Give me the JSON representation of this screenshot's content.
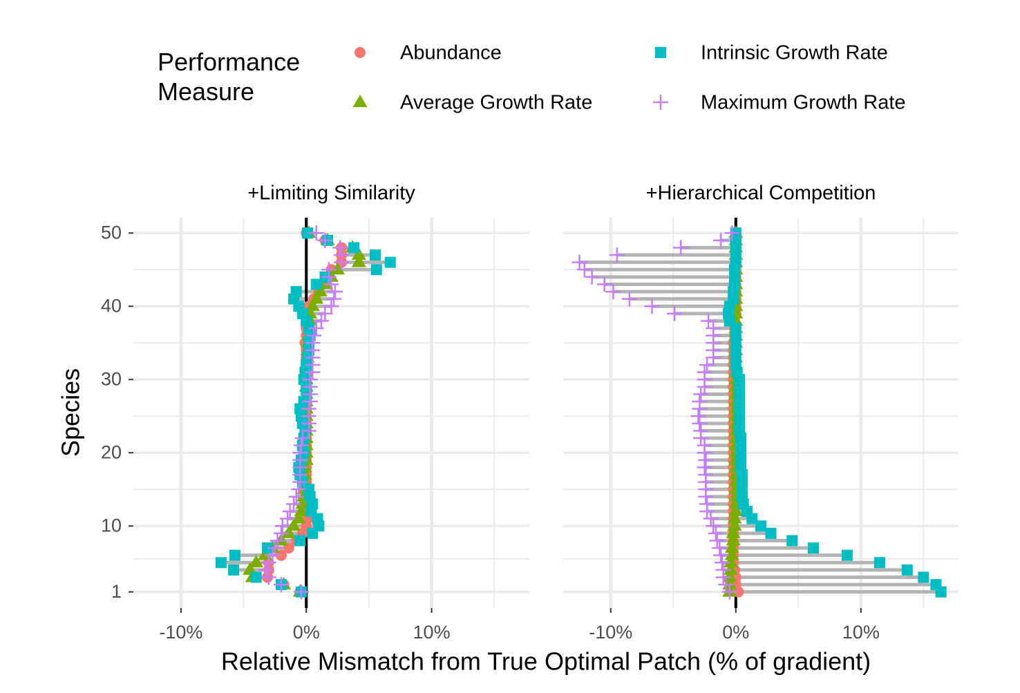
{
  "chart_data": {
    "type": "dot",
    "legend_title": "Performance\nMeasure",
    "xlabel": "Relative Mismatch from True Optimal Patch (% of gradient)",
    "ylabel": "Species",
    "xlim": [
      -13.8,
      17.8
    ],
    "ylim": [
      -1.2,
      52.1
    ],
    "xticks": [
      {
        "value": -10,
        "label": "-10%"
      },
      {
        "value": 0,
        "label": "0%"
      },
      {
        "value": 10,
        "label": "10%"
      }
    ],
    "minor_xticks": [
      -5,
      5,
      15
    ],
    "yticks": [
      1,
      10,
      20,
      30,
      40,
      50
    ],
    "minor_yticks": [
      5.5,
      15,
      25,
      35,
      45
    ],
    "grid": true,
    "categories": [
      1,
      2,
      3,
      4,
      5,
      6,
      7,
      8,
      9,
      10,
      11,
      12,
      13,
      14,
      15,
      16,
      17,
      18,
      19,
      20,
      21,
      22,
      23,
      24,
      25,
      26,
      27,
      28,
      29,
      30,
      31,
      32,
      33,
      34,
      35,
      36,
      37,
      38,
      39,
      40,
      41,
      42,
      43,
      44,
      45,
      46,
      47,
      48,
      49,
      50
    ],
    "series": [
      {
        "name": "Abundance",
        "color": "#F8766D",
        "shape": "circle"
      },
      {
        "name": "Average Growth Rate",
        "color": "#7CAE00",
        "shape": "triangle"
      },
      {
        "name": "Intrinsic Growth Rate",
        "color": "#00BFC4",
        "shape": "square"
      },
      {
        "name": "Maximum Growth Rate",
        "color": "#C77CFF",
        "shape": "plus"
      }
    ],
    "facets": [
      {
        "title": "+Limiting Similarity",
        "series": [
          {
            "values": [
              -0.5,
              -1.8,
              -3.1,
              -3,
              -3,
              -2,
              -1.4,
              -0.8,
              -0.3,
              0,
              0.1,
              0.1,
              0,
              0,
              0,
              0,
              0,
              0,
              0,
              0,
              0,
              0,
              0,
              0,
              0,
              0,
              0,
              0,
              0,
              0,
              0,
              0,
              0,
              0,
              -0.1,
              0,
              0,
              0,
              0,
              0.2,
              0.6,
              1,
              1.3,
              1.5,
              2,
              2.8,
              2.8,
              2.8,
              1.5,
              0
            ]
          },
          {
            "values": [
              -0.5,
              -1.8,
              -4.3,
              -4.5,
              -4,
              -3.3,
              -2.7,
              -2,
              -1.4,
              -1,
              -0.6,
              -0.4,
              -0.3,
              -0.2,
              -0.2,
              -0.1,
              -0.1,
              -0.1,
              0,
              0,
              0,
              0,
              0,
              0,
              0,
              0,
              0,
              0,
              0,
              0,
              0,
              0,
              0.1,
              0.1,
              0.1,
              0.2,
              0.3,
              0.3,
              0.3,
              0.5,
              0.8,
              1.1,
              1.6,
              2,
              2.5,
              4.2,
              4.2,
              3.7,
              1.7,
              0.2
            ]
          },
          {
            "values": [
              -0.4,
              -2,
              -4,
              -5.8,
              -6.8,
              -5.7,
              -3.1,
              -0.5,
              0.5,
              1,
              0.9,
              0.4,
              0.5,
              0.3,
              0.2,
              -0.3,
              -0.5,
              -0.6,
              -0.4,
              -0.2,
              -0.3,
              -0.2,
              -0.1,
              -0.3,
              -0.4,
              -0.5,
              -0.2,
              0,
              0,
              -0.2,
              -0.1,
              0,
              0.1,
              0.2,
              0.2,
              0.3,
              0.2,
              0,
              -0.3,
              -0.6,
              -1,
              -0.8,
              0.8,
              1.5,
              5.6,
              6.7,
              5.5,
              3.8,
              1.7,
              0.1
            ]
          },
          {
            "values": [
              -0.4,
              -2,
              -3,
              -3.2,
              -3,
              -2.7,
              -2.5,
              -2.3,
              -2,
              -1.9,
              -1.5,
              -1.3,
              -1,
              -0.8,
              -0.6,
              -0.5,
              -0.5,
              -0.5,
              -0.5,
              -0.5,
              -0.4,
              -0.3,
              0.2,
              0.2,
              0.2,
              0.2,
              0.3,
              0.3,
              0.3,
              0.3,
              0.5,
              0.5,
              0.5,
              0.5,
              0.5,
              0.6,
              0.8,
              1.2,
              1.5,
              2,
              2.2,
              2.3,
              2,
              1.8,
              1.8,
              2.8,
              2.8,
              2.7,
              1.5,
              0.8
            ]
          }
        ]
      },
      {
        "title": "+Hierarchical Competition",
        "series": [
          {
            "values": [
              0.2,
              0,
              0,
              -0.1,
              -0.2,
              -0.2,
              -0.2,
              -0.2,
              -0.2,
              -0.2,
              -0.2,
              -0.2,
              -0.2,
              -0.2,
              -0.2,
              -0.2,
              -0.2,
              -0.2,
              -0.2,
              -0.2,
              -0.2,
              -0.2,
              -0.2,
              -0.2,
              -0.2,
              -0.2,
              -0.2,
              -0.2,
              -0.2,
              -0.2,
              -0.2,
              -0.2,
              -0.2,
              -0.2,
              -0.2,
              -0.1,
              -0.1,
              -0.1,
              0,
              0,
              0,
              0,
              0,
              0,
              0,
              0,
              0,
              0,
              0,
              0
            ]
          },
          {
            "values": [
              -0.5,
              -0.5,
              -0.5,
              -0.4,
              -0.4,
              -0.3,
              -0.3,
              -0.2,
              -0.2,
              -0.1,
              -0.1,
              0,
              0,
              0,
              0,
              0,
              0,
              0,
              0,
              0,
              0,
              0,
              0,
              0,
              0,
              0,
              0,
              0,
              0,
              0,
              0,
              0,
              0,
              0,
              0,
              0,
              0,
              0,
              0,
              0,
              0,
              0,
              0,
              0,
              0,
              0,
              0,
              0,
              0,
              0
            ]
          },
          {
            "values": [
              16.4,
              16,
              15,
              13.7,
              11.5,
              8.9,
              6.2,
              4.5,
              2.8,
              2,
              1.3,
              0.9,
              0.6,
              0.5,
              0.5,
              0.5,
              0.5,
              0.4,
              0.4,
              0.4,
              0.4,
              0.4,
              0.3,
              0.3,
              0.3,
              0.3,
              0.3,
              0.3,
              0.3,
              0.3,
              0.1,
              0,
              0,
              0,
              0,
              0,
              0,
              -0.5,
              -0.6,
              -0.5,
              -0.2,
              -0.2,
              -0.1,
              -0.1,
              -0.1,
              0,
              0,
              0,
              0,
              0
            ]
          },
          {
            "values": [
              -0.5,
              -0.8,
              -1,
              -1,
              -1.1,
              -1.2,
              -1.3,
              -1.5,
              -1.6,
              -1.8,
              -2,
              -2.3,
              -2.3,
              -2.4,
              -2.4,
              -2.4,
              -2.4,
              -2.5,
              -2.4,
              -2.5,
              -2.5,
              -2.8,
              -2.8,
              -2.9,
              -3,
              -2.9,
              -2.9,
              -2.8,
              -2.5,
              -2.5,
              -2.5,
              -2.3,
              -1.8,
              -1.8,
              -1.8,
              -1.8,
              -1.8,
              -2.2,
              -4.9,
              -6.7,
              -8.5,
              -9.8,
              -10.5,
              -11.5,
              -12.1,
              -12.5,
              -9.5,
              -4.4,
              -1.2,
              -0.3
            ]
          }
        ]
      }
    ]
  }
}
